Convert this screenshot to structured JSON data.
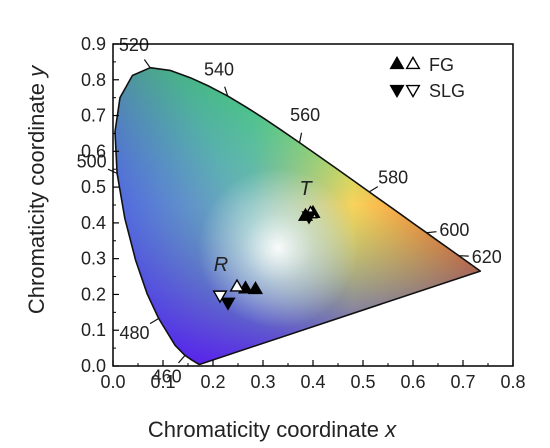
{
  "chart_data": {
    "type": "scatter",
    "title": "",
    "xlabel_main": "Chromaticity coordinate ",
    "xlabel_var": "x",
    "ylabel_main": "Chromaticity coordinate ",
    "ylabel_var": "y",
    "xlim": [
      0.0,
      0.8
    ],
    "ylim": [
      0.0,
      0.9
    ],
    "xticks": [
      "0.0",
      "0.1",
      "0.2",
      "0.3",
      "0.4",
      "0.5",
      "0.6",
      "0.7",
      "0.8"
    ],
    "yticks": [
      "0.0",
      "0.1",
      "0.2",
      "0.3",
      "0.4",
      "0.5",
      "0.6",
      "0.7",
      "0.8",
      "0.9"
    ],
    "locus": [
      [
        0.1741,
        0.005
      ],
      [
        0.1738,
        0.0049
      ],
      [
        0.1736,
        0.0049
      ],
      [
        0.1733,
        0.0048
      ],
      [
        0.1726,
        0.0048
      ],
      [
        0.1714,
        0.0051
      ],
      [
        0.1689,
        0.0069
      ],
      [
        0.1644,
        0.0109
      ],
      [
        0.1566,
        0.0177
      ],
      [
        0.144,
        0.0297
      ],
      [
        0.1241,
        0.0578
      ],
      [
        0.0913,
        0.1327
      ],
      [
        0.0687,
        0.2007
      ],
      [
        0.0454,
        0.295
      ],
      [
        0.0235,
        0.4127
      ],
      [
        0.0082,
        0.5384
      ],
      [
        0.0039,
        0.6548
      ],
      [
        0.0139,
        0.7502
      ],
      [
        0.0389,
        0.812
      ],
      [
        0.0743,
        0.8338
      ],
      [
        0.1142,
        0.8262
      ],
      [
        0.1547,
        0.8059
      ],
      [
        0.1929,
        0.7816
      ],
      [
        0.2296,
        0.7543
      ],
      [
        0.2658,
        0.7243
      ],
      [
        0.3016,
        0.6923
      ],
      [
        0.3373,
        0.6589
      ],
      [
        0.3731,
        0.6245
      ],
      [
        0.4087,
        0.5896
      ],
      [
        0.4441,
        0.5547
      ],
      [
        0.4788,
        0.5202
      ],
      [
        0.5125,
        0.4866
      ],
      [
        0.5448,
        0.4544
      ],
      [
        0.5752,
        0.4242
      ],
      [
        0.6029,
        0.3965
      ],
      [
        0.627,
        0.3725
      ],
      [
        0.6482,
        0.3514
      ],
      [
        0.6658,
        0.334
      ],
      [
        0.6801,
        0.3197
      ],
      [
        0.6915,
        0.3083
      ],
      [
        0.7006,
        0.2993
      ],
      [
        0.7079,
        0.292
      ],
      [
        0.714,
        0.2859
      ],
      [
        0.719,
        0.2809
      ],
      [
        0.723,
        0.277
      ],
      [
        0.726,
        0.274
      ],
      [
        0.7283,
        0.2717
      ],
      [
        0.73,
        0.27
      ],
      [
        0.7347,
        0.2653
      ]
    ],
    "wavelength_labels": [
      {
        "text": "460",
        "x": 0.144,
        "y": 0.0297
      },
      {
        "text": "480",
        "x": 0.0913,
        "y": 0.1327
      },
      {
        "text": "500",
        "x": 0.0082,
        "y": 0.5384
      },
      {
        "text": "520",
        "x": 0.0743,
        "y": 0.8338
      },
      {
        "text": "540",
        "x": 0.2296,
        "y": 0.7543
      },
      {
        "text": "560",
        "x": 0.3731,
        "y": 0.6245
      },
      {
        "text": "580",
        "x": 0.5125,
        "y": 0.4866
      },
      {
        "text": "600",
        "x": 0.627,
        "y": 0.3725
      },
      {
        "text": "620",
        "x": 0.6915,
        "y": 0.3083
      }
    ],
    "series": [
      {
        "name": "FG",
        "marker": "triangle-up",
        "fill": "filled",
        "points": [
          [
            0.385,
            0.42
          ],
          [
            0.4,
            0.428
          ],
          [
            0.265,
            0.217
          ],
          [
            0.285,
            0.215
          ]
        ]
      },
      {
        "name": "FG",
        "marker": "triangle-up",
        "fill": "open",
        "points": [
          [
            0.395,
            0.427
          ],
          [
            0.248,
            0.222
          ]
        ]
      },
      {
        "name": "SLG",
        "marker": "triangle-down",
        "fill": "filled",
        "points": [
          [
            0.392,
            0.418
          ],
          [
            0.23,
            0.177
          ]
        ]
      },
      {
        "name": "SLG",
        "marker": "triangle-down",
        "fill": "open",
        "points": [
          [
            0.214,
            0.197
          ]
        ]
      }
    ],
    "annotations": [
      {
        "text": "T",
        "x": 0.385,
        "y": 0.478
      },
      {
        "text": "R",
        "x": 0.216,
        "y": 0.265
      }
    ],
    "legend": {
      "position": "top-right",
      "entries": [
        {
          "label": "FG",
          "filled": "triangle-up",
          "open": "triangle-up"
        },
        {
          "label": "SLG",
          "filled": "triangle-down",
          "open": "triangle-down"
        }
      ]
    },
    "colors": {
      "marker": "#000000",
      "frame": "#000000",
      "locus": "#111111"
    }
  }
}
